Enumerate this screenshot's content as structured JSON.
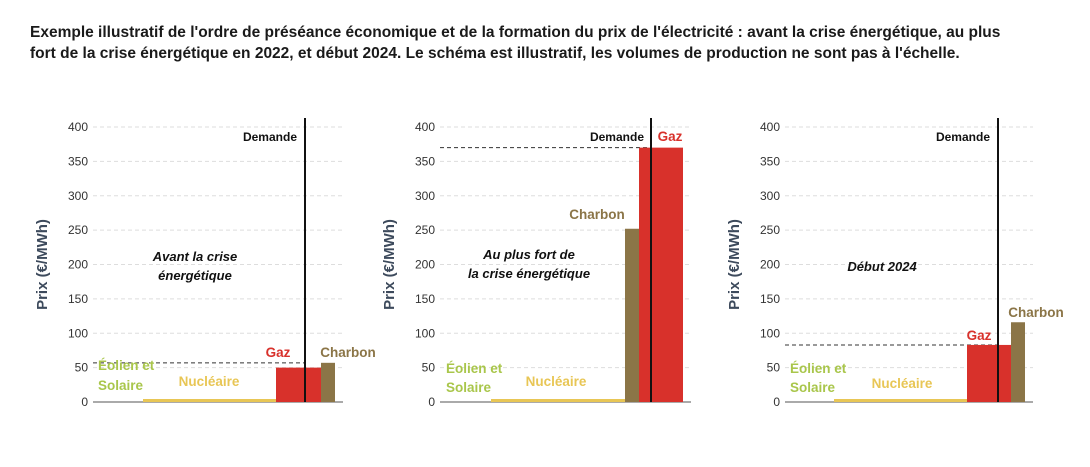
{
  "title_line1": "Exemple illustratif de l'ordre de préséance économique et de la formation du prix de l'électricité : avant la crise énergétique, au plus",
  "title_line2": "fort de la crise énergétique en 2022, et début 2024. Le schéma est illustratif, les volumes de production ne sont pas à l'échelle.",
  "colors": {
    "wind_solar": "#a9c64b",
    "nuclear": "#e8c655",
    "gas": "#d8312b",
    "coal": "#8b7547",
    "axis": "#555555",
    "grid": "#dddddd"
  },
  "chart_data": [
    {
      "type": "bar",
      "annotation": [
        "Avant la crise",
        "énergétique"
      ],
      "ylabel": "Prix (€/MWh)",
      "ylim": [
        0,
        400
      ],
      "yticks": [
        0,
        50,
        100,
        150,
        200,
        250,
        300,
        350,
        400
      ],
      "demand_label": "Demande",
      "clearing_price": 57,
      "bars": [
        {
          "name": "Éolien et Solaire",
          "label_lines": [
            "Éolien et",
            "Solaire"
          ],
          "value": 0,
          "color": "#a9c64b"
        },
        {
          "name": "Nucléaire",
          "label_lines": [
            "Nucléaire"
          ],
          "value": 4,
          "color": "#e8c655"
        },
        {
          "name": "Gaz",
          "label_lines": [
            "Gaz"
          ],
          "value": 50,
          "color": "#d8312b"
        },
        {
          "name": "Charbon",
          "label_lines": [
            "Charbon"
          ],
          "value": 57,
          "color": "#8b7547"
        }
      ]
    },
    {
      "type": "bar",
      "annotation": [
        "Au plus fort de",
        "la crise énergétique"
      ],
      "ylabel": "Prix (€/MWh)",
      "ylim": [
        0,
        400
      ],
      "yticks": [
        0,
        50,
        100,
        150,
        200,
        250,
        300,
        350,
        400
      ],
      "demand_label": "Demande",
      "clearing_price": 370,
      "bars": [
        {
          "name": "Éolien et Solaire",
          "label_lines": [
            "Éolien et",
            "Solaire"
          ],
          "value": 0,
          "color": "#a9c64b"
        },
        {
          "name": "Nucléaire",
          "label_lines": [
            "Nucléaire"
          ],
          "value": 4,
          "color": "#e8c655"
        },
        {
          "name": "Charbon",
          "label_lines": [
            "Charbon"
          ],
          "value": 252,
          "color": "#8b7547"
        },
        {
          "name": "Gaz",
          "label_lines": [
            "Gaz"
          ],
          "value": 370,
          "color": "#d8312b"
        }
      ]
    },
    {
      "type": "bar",
      "annotation": [
        "Début 2024"
      ],
      "ylabel": "Prix (€/MWh)",
      "ylim": [
        0,
        400
      ],
      "yticks": [
        0,
        50,
        100,
        150,
        200,
        250,
        300,
        350,
        400
      ],
      "demand_label": "Demande",
      "clearing_price": 83,
      "bars": [
        {
          "name": "Éolien et Solaire",
          "label_lines": [
            "Éolien et",
            "Solaire"
          ],
          "value": 0,
          "color": "#a9c64b"
        },
        {
          "name": "Nucléaire",
          "label_lines": [
            "Nucléaire"
          ],
          "value": 4,
          "color": "#e8c655"
        },
        {
          "name": "Gaz",
          "label_lines": [
            "Gaz"
          ],
          "value": 83,
          "color": "#d8312b"
        },
        {
          "name": "Charbon",
          "label_lines": [
            "Charbon"
          ],
          "value": 116,
          "color": "#8b7547"
        }
      ]
    }
  ]
}
